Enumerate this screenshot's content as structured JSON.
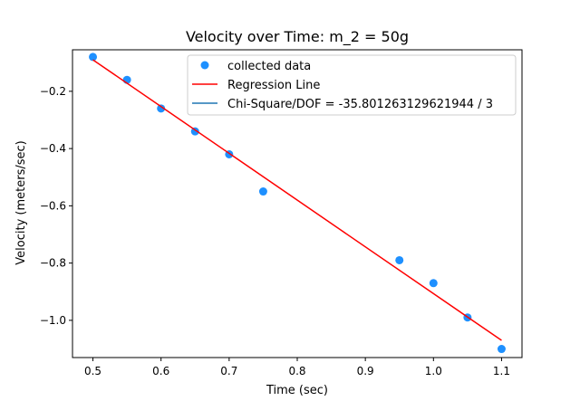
{
  "chart_data": {
    "type": "scatter",
    "title": "Velocity over Time: m_2 = 50g",
    "xlabel": "Time (sec)",
    "ylabel": "Velocity (meters/sec)",
    "xlim": [
      0.47,
      1.13
    ],
    "ylim": [
      -1.13,
      -0.055
    ],
    "x_ticks": [
      0.5,
      0.6,
      0.7,
      0.8,
      0.9,
      1.0,
      1.1
    ],
    "x_tick_labels": [
      "0.5",
      "0.6",
      "0.7",
      "0.8",
      "0.9",
      "1.0",
      "1.1"
    ],
    "y_ticks": [
      -0.2,
      -0.4,
      -0.6,
      -0.8,
      -1.0
    ],
    "y_tick_labels": [
      "−0.2",
      "−0.4",
      "−0.6",
      "−0.8",
      "−1.0"
    ],
    "grid": false,
    "legend_position": "top-right",
    "series": [
      {
        "name": "collected data",
        "kind": "scatter",
        "color": "#1e90ff",
        "x": [
          0.5,
          0.55,
          0.6,
          0.65,
          0.7,
          0.75,
          0.95,
          1.0,
          1.05,
          1.1
        ],
        "y": [
          -0.08,
          -0.16,
          -0.26,
          -0.34,
          -0.42,
          -0.55,
          -0.79,
          -0.87,
          -0.99,
          -1.1
        ]
      },
      {
        "name": "Regression Line",
        "kind": "line",
        "color": "#ff0000",
        "x": [
          0.5,
          1.1
        ],
        "y": [
          -0.09,
          -1.07
        ]
      },
      {
        "name": "Chi-Square/DOF = -35.801263129621944 / 3",
        "kind": "line",
        "color": "#1f77b4",
        "x": [],
        "y": []
      }
    ]
  }
}
